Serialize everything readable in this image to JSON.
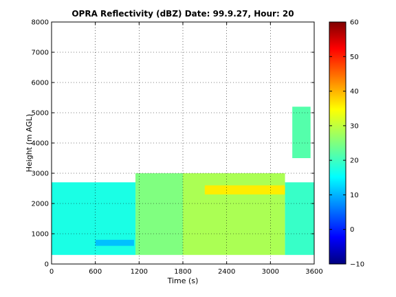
{
  "chart_data": {
    "type": "heatmap",
    "title": "OPRA Reflectivity (dBZ)  Date: 99.9.27, Hour: 20",
    "xlabel": "Time (s)",
    "ylabel": "Height (m AGL)",
    "xlim": [
      0,
      3600
    ],
    "ylim": [
      0,
      8000
    ],
    "xticks": [
      0,
      600,
      1200,
      1800,
      2400,
      3000,
      3600
    ],
    "yticks": [
      0,
      1000,
      2000,
      3000,
      4000,
      5000,
      6000,
      7000,
      8000
    ],
    "grid": true,
    "colorbar": {
      "colormap": "jet",
      "clim": [
        -10,
        60
      ],
      "ticks": [
        -10,
        0,
        10,
        20,
        30,
        40,
        50,
        60
      ]
    },
    "regions_dbz": [
      {
        "time": [
          0,
          1150
        ],
        "height": [
          300,
          2700
        ],
        "dbz": 18
      },
      {
        "time": [
          600,
          1130
        ],
        "height": [
          600,
          800
        ],
        "dbz": 12
      },
      {
        "time": [
          1150,
          1800
        ],
        "height": [
          300,
          3000
        ],
        "dbz": 25
      },
      {
        "time": [
          1800,
          3200
        ],
        "height": [
          300,
          3000
        ],
        "dbz": 28
      },
      {
        "time": [
          2100,
          3250
        ],
        "height": [
          2300,
          2600
        ],
        "dbz": 35
      },
      {
        "time": [
          3200,
          3600
        ],
        "height": [
          300,
          2700
        ],
        "dbz": 20
      },
      {
        "time": [
          3300,
          3550
        ],
        "height": [
          3500,
          5200
        ],
        "dbz": 22
      }
    ]
  }
}
